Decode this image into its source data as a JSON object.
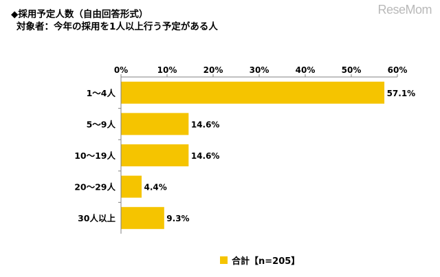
{
  "header": {
    "title": "◆採用予定人数（自由回答形式）",
    "subtitle": "対象者：今年の採用を1人以上行う予定がある人"
  },
  "watermark": "ReseMom",
  "colors": {
    "bar": "#F5C400",
    "axis": "#808080",
    "grid": "#c0c0c0"
  },
  "chart_data": {
    "type": "bar",
    "orientation": "horizontal",
    "categories": [
      "1～4人",
      "5～9人",
      "10～19人",
      "20～29人",
      "30人以上"
    ],
    "series": [
      {
        "name": "合計【n=205】",
        "values": [
          57.1,
          14.6,
          14.6,
          4.4,
          9.3
        ]
      }
    ],
    "value_labels": [
      "57.1%",
      "14.6%",
      "14.6%",
      "4.4%",
      "9.3%"
    ],
    "xlim": [
      0,
      60
    ],
    "xticks": [
      "0%",
      "10%",
      "20%",
      "30%",
      "40%",
      "50%",
      "60%"
    ],
    "tick_position": "top",
    "grid": false,
    "legend_position": "bottom"
  }
}
